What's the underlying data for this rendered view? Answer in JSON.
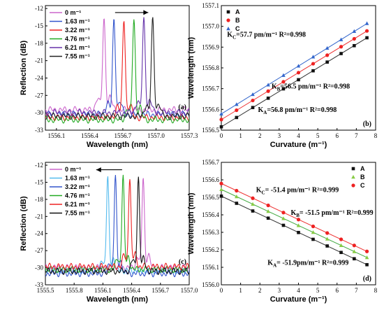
{
  "chart_data": [
    {
      "id": "a",
      "type": "line",
      "panel_label": "(a)",
      "xlabel": "Wavelength (nm)",
      "ylabel": "Reflection (dB)",
      "xlim": [
        1556.0,
        1557.3
      ],
      "ylim": [
        -33,
        -11.5
      ],
      "xticks": [
        1556.1,
        1556.4,
        1556.7,
        1557.0,
        1557.3
      ],
      "xtick_labels": [
        "1556.1",
        "1556.4",
        "1556.7",
        "1557.0",
        "1557.3"
      ],
      "yticks": [
        -33,
        -30,
        -27,
        -24,
        -21,
        -18,
        -15,
        -12
      ],
      "ytick_labels": [
        "-33",
        "-30",
        "-27",
        "-24",
        "-21",
        "-18",
        "-15",
        "-12"
      ],
      "arrow": {
        "from": 1556.63,
        "to": 1556.93,
        "y": -12.7
      },
      "legend": {
        "placement": "top-left"
      },
      "series": [
        {
          "name": "0 m⁻¹",
          "color": "#cc66cc",
          "peak": 1556.53,
          "peak_db": -13.8,
          "floor": -29.5
        },
        {
          "name": "1.63 m⁻¹",
          "color": "#3355cc",
          "peak": 1556.62,
          "peak_db": -13.9,
          "floor": -30.3
        },
        {
          "name": "3.22 m⁻¹",
          "color": "#ee2222",
          "peak": 1556.71,
          "peak_db": -13.8,
          "floor": -30.8
        },
        {
          "name": "4.76 m⁻¹",
          "color": "#22aa22",
          "peak": 1556.8,
          "peak_db": -13.8,
          "floor": -31.2
        },
        {
          "name": "6.21 m⁻¹",
          "color": "#6633aa",
          "peak": 1556.89,
          "peak_db": -13.9,
          "floor": -30.0
        },
        {
          "name": "7.55 m⁻¹",
          "color": "#222222",
          "peak": 1556.97,
          "peak_db": -14.0,
          "floor": -30.6
        }
      ]
    },
    {
      "id": "b",
      "type": "scatter",
      "panel_label": "(b)",
      "xlabel": "Curvature (m⁻¹)",
      "ylabel": "Wavelength (nm)",
      "xlim": [
        0,
        8
      ],
      "ylim": [
        1556.5,
        1557.1
      ],
      "xticks": [
        0,
        1,
        2,
        3,
        4,
        5,
        6,
        7,
        8
      ],
      "xtick_labels": [
        "0",
        "1",
        "2",
        "3",
        "4",
        "5",
        "6",
        "7",
        "8"
      ],
      "yticks": [
        1556.5,
        1556.6,
        1556.7,
        1556.8,
        1556.9,
        1557.0,
        1557.1
      ],
      "ytick_labels": [
        "1556.5",
        "1556.6",
        "1556.7",
        "1556.8",
        "1556.9",
        "1557.0",
        "1557.1"
      ],
      "x": [
        0,
        0.79,
        1.63,
        2.43,
        3.22,
        4.0,
        4.76,
        5.49,
        6.21,
        6.89,
        7.55
      ],
      "legend": {
        "placement": "top-left"
      },
      "series": [
        {
          "name": "A",
          "color": "#111111",
          "marker": "square",
          "line_color": "#333333",
          "intercept": 1556.516,
          "slope": 0.0568,
          "values": [
            1556.516,
            1556.561,
            1556.609,
            1556.654,
            1556.699,
            1556.743,
            1556.786,
            1556.828,
            1556.869,
            1556.907,
            1556.945
          ]
        },
        {
          "name": "B",
          "color": "#ee2222",
          "marker": "circle",
          "line_color": "#ee3333",
          "intercept": 1556.551,
          "slope": 0.0565,
          "values": [
            1556.551,
            1556.596,
            1556.643,
            1556.688,
            1556.733,
            1556.777,
            1556.82,
            1556.861,
            1556.902,
            1556.94,
            1556.978
          ]
        },
        {
          "name": "C",
          "color": "#3366cc",
          "marker": "triangle",
          "line_color": "#3366cc",
          "intercept": 1556.578,
          "slope": 0.0577,
          "values": [
            1556.578,
            1556.624,
            1556.672,
            1556.718,
            1556.764,
            1556.809,
            1556.853,
            1556.895,
            1556.936,
            1556.976,
            1557.014
          ]
        }
      ],
      "annotations": [
        {
          "main": "K",
          "sub": "C",
          "rest": "=57.7 pm/m⁻¹ R²=0.998",
          "x": 0.3,
          "y": 1556.95
        },
        {
          "main": "K",
          "sub": "B",
          "rest": "=56.5 pm/m⁻¹ R²=0.998",
          "x": 2.6,
          "y": 1556.7
        },
        {
          "main": "K",
          "sub": "A",
          "rest": "=56.8 pm/m⁻¹ R²=0.998",
          "x": 1.9,
          "y": 1556.588
        }
      ]
    },
    {
      "id": "c",
      "type": "line",
      "panel_label": "(c)",
      "xlabel": "Wavelength (nm)",
      "ylabel": "Reflection (dB)",
      "xlim": [
        1555.5,
        1557.0
      ],
      "ylim": [
        -33,
        -11.5
      ],
      "xticks": [
        1555.5,
        1555.8,
        1556.1,
        1556.4,
        1556.7,
        1557.0
      ],
      "xtick_labels": [
        "1555.5",
        "1555.8",
        "1556.1",
        "1556.4",
        "1556.7",
        "1557.0"
      ],
      "yticks": [
        -33,
        -30,
        -27,
        -24,
        -21,
        -18,
        -15,
        -12
      ],
      "ytick_labels": [
        "-33",
        "-30",
        "-27",
        "-24",
        "-21",
        "-18",
        "-15",
        "-12"
      ],
      "arrow": {
        "from": 1556.3,
        "to": 1556.03,
        "y": -12.8
      },
      "legend": {
        "placement": "top-left"
      },
      "series": [
        {
          "name": "0 m⁻¹",
          "color": "#cc66cc",
          "peak": 1556.52,
          "peak_db": -14.0,
          "floor": -30.0
        },
        {
          "name": "1.63 m⁻¹",
          "color": "#55bbee",
          "peak": 1556.15,
          "peak_db": -14.0,
          "floor": -30.5
        },
        {
          "name": "3.22 m⁻¹",
          "color": "#3355cc",
          "peak": 1556.23,
          "peak_db": -13.9,
          "floor": -31.0
        },
        {
          "name": "4.76 m⁻¹",
          "color": "#22aa22",
          "peak": 1556.31,
          "peak_db": -13.9,
          "floor": -30.3
        },
        {
          "name": "6.21 m⁻¹",
          "color": "#ee2222",
          "peak": 1556.38,
          "peak_db": -14.0,
          "floor": -29.8
        },
        {
          "name": "7.55 m⁻¹",
          "color": "#111111",
          "peak": 1556.47,
          "peak_db": -14.1,
          "floor": -30.6
        }
      ]
    },
    {
      "id": "d",
      "type": "scatter",
      "panel_label": "(d)",
      "xlabel": "Curvature (m⁻¹)",
      "ylabel": "Wavelength (nm)",
      "xlim": [
        0,
        8
      ],
      "ylim": [
        1556.0,
        1556.7
      ],
      "xticks": [
        0,
        1,
        2,
        3,
        4,
        5,
        6,
        7,
        8
      ],
      "xtick_labels": [
        "0",
        "1",
        "2",
        "3",
        "4",
        "5",
        "6",
        "7",
        "8"
      ],
      "yticks": [
        1556.0,
        1556.1,
        1556.2,
        1556.3,
        1556.4,
        1556.5,
        1556.6,
        1556.7
      ],
      "ytick_labels": [
        "1556.0",
        "1556.1",
        "1556.2",
        "1556.3",
        "1556.4",
        "1556.5",
        "1556.6",
        "1556.7"
      ],
      "x": [
        0,
        0.79,
        1.63,
        2.43,
        3.22,
        4.0,
        4.76,
        5.49,
        6.21,
        6.89,
        7.55
      ],
      "legend": {
        "placement": "top-right"
      },
      "series": [
        {
          "name": "A",
          "color": "#111111",
          "marker": "square",
          "line_color": "#333333",
          "intercept": 1556.507,
          "slope": -0.0519,
          "values": [
            1556.507,
            1556.466,
            1556.422,
            1556.381,
            1556.34,
            1556.299,
            1556.26,
            1556.222,
            1556.185,
            1556.149,
            1556.115
          ]
        },
        {
          "name": "B",
          "color": "#88cc44",
          "marker": "triangle",
          "line_color": "#44aa44",
          "intercept": 1556.545,
          "slope": -0.0515,
          "values": [
            1556.545,
            1556.504,
            1556.461,
            1556.42,
            1556.379,
            1556.339,
            1556.3,
            1556.262,
            1556.225,
            1556.19,
            1556.156
          ]
        },
        {
          "name": "C",
          "color": "#ee2222",
          "marker": "circle",
          "line_color": "#ee3333",
          "intercept": 1556.579,
          "slope": -0.0514,
          "values": [
            1556.579,
            1556.538,
            1556.495,
            1556.454,
            1556.413,
            1556.373,
            1556.334,
            1556.296,
            1556.26,
            1556.225,
            1556.191
          ]
        }
      ],
      "annotations": [
        {
          "main": "K",
          "sub": "C",
          "rest": "= -51.4 pm/m⁻¹ R²=0.999",
          "x": 1.8,
          "y": 1556.53
        },
        {
          "main": "K",
          "sub": "B",
          "rest": "= -51.5 pm/m⁻¹ R²=0.999",
          "x": 3.6,
          "y": 1556.4
        },
        {
          "main": "K",
          "sub": "A",
          "rest": "= -51.9pm/m⁻¹ R²=0.999",
          "x": 2.4,
          "y": 1556.115
        }
      ]
    }
  ]
}
